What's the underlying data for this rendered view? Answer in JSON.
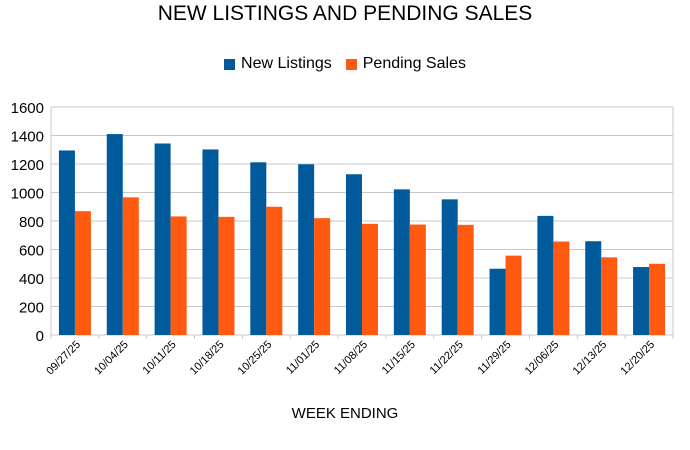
{
  "chart_data": {
    "type": "bar",
    "title": "NEW LISTINGS AND PENDING SALES",
    "xlabel": "WEEK ENDING",
    "ylabel": "",
    "ylim": [
      0,
      1600
    ],
    "yticks": [
      0,
      200,
      400,
      600,
      800,
      1000,
      1200,
      1400,
      1600
    ],
    "grid": true,
    "legend_position": "top-center",
    "categories": [
      "09/27/25",
      "10/04/25",
      "10/11/25",
      "10/18/25",
      "10/25/25",
      "11/01/25",
      "11/08/25",
      "11/15/25",
      "11/22/25",
      "11/29/25",
      "12/06/25",
      "12/13/25",
      "12/20/25"
    ],
    "series": [
      {
        "name": "New Listings",
        "color": "#005a9c",
        "values": [
          1295,
          1410,
          1344,
          1302,
          1212,
          1198,
          1128,
          1022,
          952,
          465,
          836,
          658,
          477
        ]
      },
      {
        "name": "Pending Sales",
        "color": "#ff5a0f",
        "values": [
          869,
          966,
          832,
          829,
          900,
          820,
          780,
          775,
          773,
          557,
          656,
          545,
          500
        ]
      }
    ]
  }
}
